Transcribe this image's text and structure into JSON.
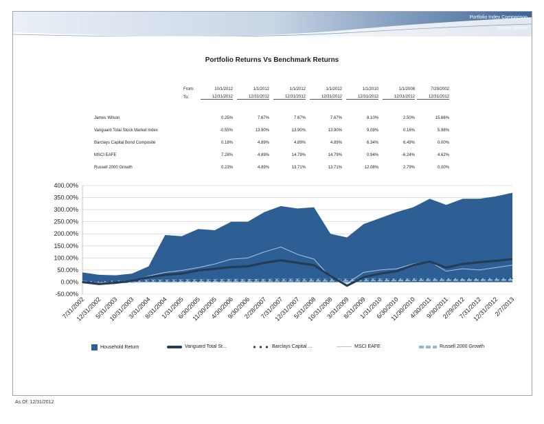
{
  "header": {
    "title": "Portfolio Index Comparison",
    "client": "James Wilson"
  },
  "report_title": "Portfolio Returns Vs Benchmark Returns",
  "table": {
    "from_label": "From:",
    "to_label": "To:",
    "periods": [
      {
        "from": "10/1/2012",
        "to": "12/31/2012"
      },
      {
        "from": "1/1/2012",
        "to": "12/31/2012"
      },
      {
        "from": "1/1/2012",
        "to": "12/31/2012"
      },
      {
        "from": "1/1/2012",
        "to": "12/31/2012"
      },
      {
        "from": "1/1/2010",
        "to": "12/31/2012"
      },
      {
        "from": "1/1/2008",
        "to": "12/31/2012"
      },
      {
        "from": "7/29/2002",
        "to": "12/31/2012"
      }
    ],
    "rows": [
      {
        "name": "James Wilson",
        "values": [
          "0.25%",
          "7.67%",
          "7.67%",
          "7.67%",
          "8.10%",
          "2.50%",
          "15.66%"
        ]
      },
      {
        "name": "Vanguard Total Stock Market Index",
        "values": [
          "-0.55%",
          "13.90%",
          "13.90%",
          "13.90%",
          "9.09%",
          "0.16%",
          "5.98%"
        ]
      },
      {
        "name": "Barclays Capital Bond Composite",
        "values": [
          "0.18%",
          "4.89%",
          "4.89%",
          "4.89%",
          "6.34%",
          "6.49%",
          "0.00%"
        ]
      },
      {
        "name": "MSCI EAFE",
        "values": [
          "7.28%",
          "4.89%",
          "14.79%",
          "14.79%",
          "0.94%",
          "-6.24%",
          "4.62%"
        ]
      },
      {
        "name": "Russell 2000 Growth",
        "values": [
          "0.23%",
          "4.89%",
          "13.71%",
          "13.71%",
          "12.08%",
          "2.79%",
          "0.00%"
        ]
      }
    ]
  },
  "chart_data": {
    "type": "area",
    "ylim": [
      -50,
      400
    ],
    "y_ticks": [
      "400.00%",
      "350.00%",
      "300.00%",
      "250.00%",
      "200.00%",
      "150.00%",
      "100.00%",
      "50.00%",
      "0.00%",
      "-50.00%"
    ],
    "x_labels": [
      "7/31/2002",
      "12/31/2002",
      "5/31/2003",
      "10/31/2003",
      "3/31/2004",
      "8/31/2004",
      "1/31/2005",
      "6/30/2005",
      "11/30/2005",
      "4/30/2006",
      "9/30/2006",
      "2/28/2007",
      "7/31/2007",
      "12/31/2007",
      "5/31/2008",
      "10/31/2008",
      "3/31/2009",
      "8/31/2009",
      "1/31/2010",
      "6/30/2010",
      "11/30/2010",
      "4/30/2011",
      "9/30/2011",
      "2/29/2012",
      "7/31/2012",
      "12/31/2012",
      "2/7/2013"
    ],
    "colors": {
      "household": "#2e5f94",
      "vanguard": "#253c56",
      "barclays": "#1f3a5f",
      "msci": "#a8c6e6",
      "russell": "#8db4dd"
    },
    "series": [
      {
        "name": "Household Return",
        "values": [
          40,
          30,
          28,
          35,
          65,
          195,
          190,
          220,
          215,
          250,
          250,
          290,
          315,
          305,
          310,
          200,
          185,
          240,
          265,
          290,
          310,
          345,
          320,
          345,
          345,
          355,
          370
        ]
      },
      {
        "name": "Vanguard Total St...",
        "values": [
          0,
          -8,
          -3,
          5,
          20,
          30,
          35,
          48,
          55,
          62,
          65,
          80,
          90,
          80,
          70,
          25,
          -15,
          20,
          35,
          45,
          70,
          85,
          60,
          75,
          82,
          88,
          95
        ]
      },
      {
        "name": "Barclays Capital ...",
        "values": [
          0,
          2,
          3,
          4,
          5,
          5,
          6,
          7,
          7,
          8,
          8,
          8,
          9,
          9,
          10,
          10,
          10,
          11,
          11,
          12,
          12,
          13,
          13,
          14,
          14,
          14,
          15
        ]
      },
      {
        "name": "MSCI EAFE",
        "values": [
          0,
          -10,
          -5,
          5,
          25,
          40,
          48,
          60,
          75,
          95,
          100,
          125,
          145,
          115,
          95,
          20,
          -5,
          40,
          50,
          55,
          75,
          85,
          45,
          55,
          50,
          60,
          70
        ]
      },
      {
        "name": "Russell 2000 Growth",
        "values": [
          0,
          -3,
          0,
          2,
          4,
          4,
          5,
          6,
          6,
          7,
          7,
          7,
          8,
          8,
          8,
          8,
          8,
          9,
          9,
          9,
          10,
          10,
          10,
          10,
          10,
          11,
          11
        ]
      }
    ]
  },
  "as_of": "As Of: 12/31/2012"
}
